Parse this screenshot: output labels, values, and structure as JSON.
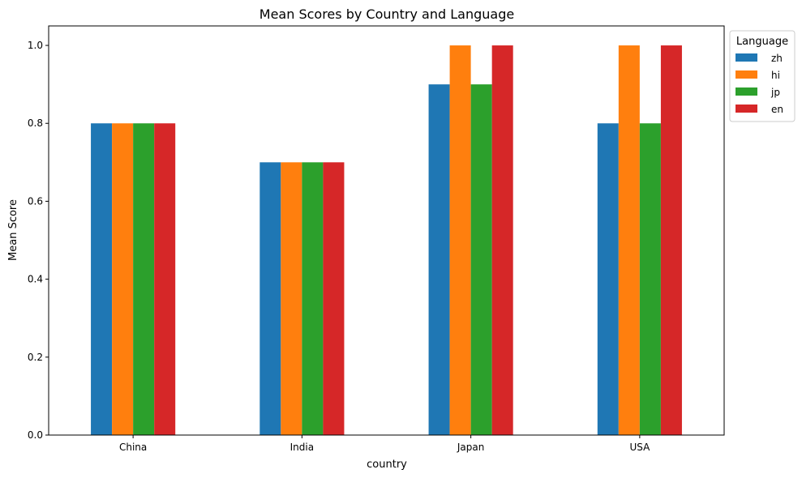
{
  "chart_data": {
    "type": "bar",
    "title": "Mean Scores by Country and Language",
    "xlabel": "country",
    "ylabel": "Mean Score",
    "categories": [
      "China",
      "India",
      "Japan",
      "USA"
    ],
    "ylim": [
      0,
      1.05
    ],
    "yticks": [
      "0.0",
      "0.2",
      "0.4",
      "0.6",
      "0.8",
      "1.0"
    ],
    "grid": false,
    "legend": {
      "title": "Language",
      "placement": "outside-top-right"
    },
    "series": [
      {
        "name": "zh",
        "color": "#1f77b4",
        "values": [
          0.8,
          0.7,
          0.9,
          0.8
        ]
      },
      {
        "name": "hi",
        "color": "#ff7f0e",
        "values": [
          0.8,
          0.7,
          1.0,
          1.0
        ]
      },
      {
        "name": "jp",
        "color": "#2ca02c",
        "values": [
          0.8,
          0.7,
          0.9,
          0.8
        ]
      },
      {
        "name": "en",
        "color": "#d62728",
        "values": [
          0.8,
          0.7,
          1.0,
          1.0
        ]
      }
    ]
  }
}
